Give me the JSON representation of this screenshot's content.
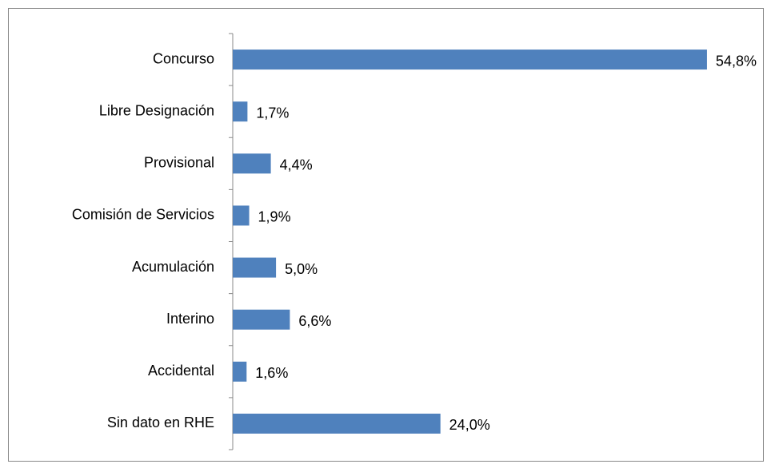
{
  "chart_data": {
    "type": "bar",
    "orientation": "horizontal",
    "categories": [
      "Concurso",
      "Libre Designación",
      "Provisional",
      "Comisión de Servicios",
      "Acumulación",
      "Interino",
      "Accidental",
      "Sin dato en RHE"
    ],
    "values": [
      54.8,
      1.7,
      4.4,
      1.9,
      5.0,
      6.6,
      1.6,
      24.0
    ],
    "value_labels": [
      "54,8%",
      "1,7%",
      "4,4%",
      "1,9%",
      "5,0%",
      "6,6%",
      "1,6%",
      "24,0%"
    ],
    "color": "#4f81bd"
  }
}
